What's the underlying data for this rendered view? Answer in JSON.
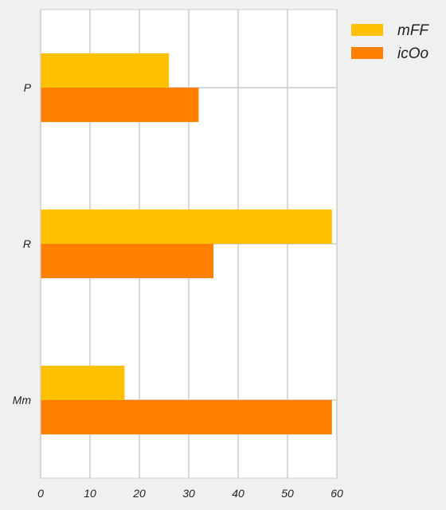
{
  "chart_data": {
    "type": "bar",
    "orientation": "horizontal",
    "categories": [
      "P",
      "R",
      "Mm"
    ],
    "series": [
      {
        "name": "mFF",
        "values": [
          26,
          59,
          17
        ],
        "color": "#ffc000"
      },
      {
        "name": "icOo",
        "values": [
          32,
          35,
          59
        ],
        "color": "#ff8000"
      }
    ],
    "xlim": [
      0,
      60
    ],
    "xticks": [
      0,
      10,
      20,
      30,
      40,
      50,
      60
    ],
    "grid": true,
    "legend_position": "top-right",
    "background": "#f0f0f0",
    "plot_background": "#ffffff",
    "grid_color": "#cccccc"
  }
}
